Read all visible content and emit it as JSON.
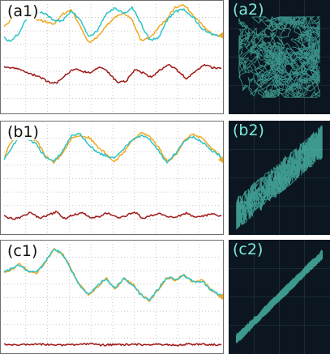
{
  "colors": {
    "channel_1": "#f0a820",
    "channel_2": "#2ec4c6",
    "difference": "#a01818",
    "xy_trace": "#5ff0d8",
    "xy_background": "#0b1620",
    "grid": "#b4b4b4"
  },
  "chart_data": [
    {
      "type": "line",
      "label": "(a1)",
      "grid": true,
      "xlim": [
        0,
        1
      ],
      "ylim": [
        -1,
        1
      ],
      "series": [
        {
          "color": "#f0a820",
          "x": [
            0,
            0.03,
            0.07,
            0.11,
            0.15,
            0.19,
            0.23,
            0.27,
            0.31,
            0.35,
            0.39,
            0.43,
            0.47,
            0.51,
            0.55,
            0.59,
            0.63,
            0.67,
            0.71,
            0.75,
            0.79,
            0.83,
            0.87,
            0.91,
            0.95,
            0.99,
            1
          ],
          "y": [
            0.57,
            0.7,
            0.93,
            0.88,
            0.71,
            0.68,
            0.62,
            0.82,
            0.89,
            0.59,
            0.28,
            0.38,
            0.6,
            0.75,
            0.85,
            0.7,
            0.33,
            0.36,
            0.55,
            0.74,
            0.95,
            0.98,
            0.8,
            0.62,
            0.46,
            0.4,
            0.42
          ]
        },
        {
          "color": "#2ec4c6",
          "x": [
            0,
            0.03,
            0.07,
            0.11,
            0.15,
            0.19,
            0.23,
            0.27,
            0.31,
            0.35,
            0.39,
            0.43,
            0.47,
            0.51,
            0.55,
            0.59,
            0.63,
            0.67,
            0.71,
            0.75,
            0.79,
            0.83,
            0.87,
            0.91,
            0.95,
            0.99,
            1
          ],
          "y": [
            0.38,
            0.3,
            0.47,
            0.77,
            0.84,
            0.83,
            0.68,
            0.7,
            0.88,
            0.7,
            0.4,
            0.5,
            0.82,
            0.92,
            0.82,
            0.93,
            0.64,
            0.33,
            0.36,
            0.7,
            0.86,
            0.9,
            0.76,
            0.55,
            0.45,
            0.4,
            0.38
          ]
        },
        {
          "color": "#a01818",
          "x": [
            0,
            0.04,
            0.08,
            0.12,
            0.16,
            0.2,
            0.24,
            0.28,
            0.32,
            0.36,
            0.4,
            0.44,
            0.48,
            0.52,
            0.56,
            0.6,
            0.64,
            0.68,
            0.72,
            0.76,
            0.8,
            0.84,
            0.88,
            0.92,
            0.96,
            1
          ],
          "y": [
            -0.17,
            -0.18,
            -0.23,
            -0.3,
            -0.34,
            -0.44,
            -0.47,
            -0.33,
            -0.2,
            -0.25,
            -0.28,
            -0.16,
            -0.27,
            -0.45,
            -0.44,
            -0.22,
            -0.28,
            -0.36,
            -0.22,
            -0.13,
            -0.24,
            -0.38,
            -0.26,
            -0.13,
            -0.18,
            -0.19
          ]
        }
      ]
    },
    {
      "type": "line",
      "label": "(b1)",
      "grid": true,
      "xlim": [
        0,
        1
      ],
      "ylim": [
        -1,
        1
      ],
      "series": [
        {
          "color": "#f0a820",
          "x": [
            0,
            0.03,
            0.07,
            0.11,
            0.15,
            0.19,
            0.23,
            0.27,
            0.31,
            0.35,
            0.39,
            0.43,
            0.47,
            0.51,
            0.55,
            0.59,
            0.63,
            0.67,
            0.71,
            0.75,
            0.79,
            0.83,
            0.87,
            0.91,
            0.95,
            0.99,
            1
          ],
          "y": [
            0.4,
            0.66,
            0.83,
            0.8,
            0.7,
            0.44,
            0.29,
            0.48,
            0.74,
            0.79,
            0.77,
            0.6,
            0.45,
            0.32,
            0.48,
            0.7,
            0.85,
            0.78,
            0.58,
            0.32,
            0.43,
            0.73,
            0.82,
            0.75,
            0.58,
            0.45,
            0.35
          ]
        },
        {
          "color": "#2ec4c6",
          "x": [
            0,
            0.03,
            0.07,
            0.11,
            0.15,
            0.19,
            0.23,
            0.27,
            0.31,
            0.35,
            0.39,
            0.43,
            0.47,
            0.51,
            0.55,
            0.59,
            0.63,
            0.67,
            0.71,
            0.75,
            0.79,
            0.83,
            0.87,
            0.91,
            0.95,
            0.99,
            1
          ],
          "y": [
            0.34,
            0.55,
            0.76,
            0.74,
            0.63,
            0.39,
            0.31,
            0.52,
            0.8,
            0.83,
            0.64,
            0.48,
            0.42,
            0.38,
            0.55,
            0.72,
            0.8,
            0.73,
            0.52,
            0.29,
            0.47,
            0.71,
            0.78,
            0.69,
            0.54,
            0.43,
            0.38
          ]
        },
        {
          "color": "#a01818",
          "x": [
            0,
            0.04,
            0.08,
            0.12,
            0.16,
            0.2,
            0.24,
            0.28,
            0.32,
            0.36,
            0.4,
            0.44,
            0.48,
            0.52,
            0.56,
            0.6,
            0.64,
            0.68,
            0.72,
            0.76,
            0.8,
            0.84,
            0.88,
            0.92,
            0.96,
            1
          ],
          "y": [
            -0.69,
            -0.75,
            -0.71,
            -0.63,
            -0.73,
            -0.68,
            -0.62,
            -0.74,
            -0.67,
            -0.64,
            -0.72,
            -0.7,
            -0.63,
            -0.73,
            -0.69,
            -0.62,
            -0.74,
            -0.68,
            -0.65,
            -0.72,
            -0.7,
            -0.64,
            -0.73,
            -0.69,
            -0.66,
            -0.7
          ]
        }
      ]
    },
    {
      "type": "line",
      "label": "(c1)",
      "grid": true,
      "xlim": [
        0,
        1
      ],
      "ylim": [
        -1,
        1
      ],
      "series": [
        {
          "color": "#f0a820",
          "x": [
            0,
            0.03,
            0.07,
            0.11,
            0.15,
            0.19,
            0.23,
            0.27,
            0.31,
            0.35,
            0.39,
            0.43,
            0.47,
            0.51,
            0.55,
            0.59,
            0.63,
            0.67,
            0.71,
            0.75,
            0.79,
            0.83,
            0.87,
            0.91,
            0.95,
            0.99,
            1
          ],
          "y": [
            0.48,
            0.5,
            0.63,
            0.5,
            0.45,
            0.67,
            0.9,
            0.81,
            0.52,
            0.23,
            0.04,
            0.2,
            0.37,
            0.15,
            0.36,
            0.26,
            0.06,
            -0.06,
            0.15,
            0.38,
            0.33,
            0.43,
            0.28,
            0.33,
            0.16,
            0.05,
            0.02
          ]
        },
        {
          "color": "#2ec4c6",
          "x": [
            0,
            0.03,
            0.07,
            0.11,
            0.15,
            0.19,
            0.23,
            0.27,
            0.31,
            0.35,
            0.39,
            0.43,
            0.47,
            0.51,
            0.55,
            0.59,
            0.63,
            0.67,
            0.71,
            0.75,
            0.79,
            0.83,
            0.87,
            0.91,
            0.95,
            0.99,
            1
          ],
          "y": [
            0.46,
            0.53,
            0.61,
            0.49,
            0.47,
            0.66,
            0.92,
            0.8,
            0.5,
            0.21,
            0.05,
            0.22,
            0.36,
            0.17,
            0.35,
            0.24,
            0.05,
            -0.05,
            0.17,
            0.37,
            0.35,
            0.41,
            0.3,
            0.31,
            0.15,
            0.06,
            0.03
          ]
        },
        {
          "color": "#a01818",
          "x": [
            0,
            0.05,
            0.1,
            0.15,
            0.2,
            0.25,
            0.3,
            0.35,
            0.4,
            0.45,
            0.5,
            0.55,
            0.6,
            0.65,
            0.7,
            0.75,
            0.8,
            0.85,
            0.9,
            0.95,
            1
          ],
          "y": [
            -0.87,
            -0.88,
            -0.87,
            -0.86,
            -0.87,
            -0.88,
            -0.87,
            -0.87,
            -0.86,
            -0.88,
            -0.87,
            -0.87,
            -0.86,
            -0.88,
            -0.87,
            -0.87,
            -0.88,
            -0.86,
            -0.87,
            -0.87,
            -0.87
          ]
        }
      ]
    },
    {
      "type": "scatter",
      "label": "(a2)",
      "xlim": [
        -1,
        1
      ],
      "ylim": [
        -1,
        1
      ],
      "pattern": "filled-square",
      "extent": 0.85,
      "color": "#5ff0d8"
    },
    {
      "type": "scatter",
      "label": "(b2)",
      "xlim": [
        -1,
        1
      ],
      "ylim": [
        -1,
        1
      ],
      "pattern": "diagonal-band",
      "correlation": 0.85,
      "color": "#5ff0d8"
    },
    {
      "type": "scatter",
      "label": "(c2)",
      "xlim": [
        -1,
        1
      ],
      "ylim": [
        -1,
        1
      ],
      "pattern": "diagonal-line",
      "correlation": 0.99,
      "color": "#5ff0d8"
    }
  ]
}
